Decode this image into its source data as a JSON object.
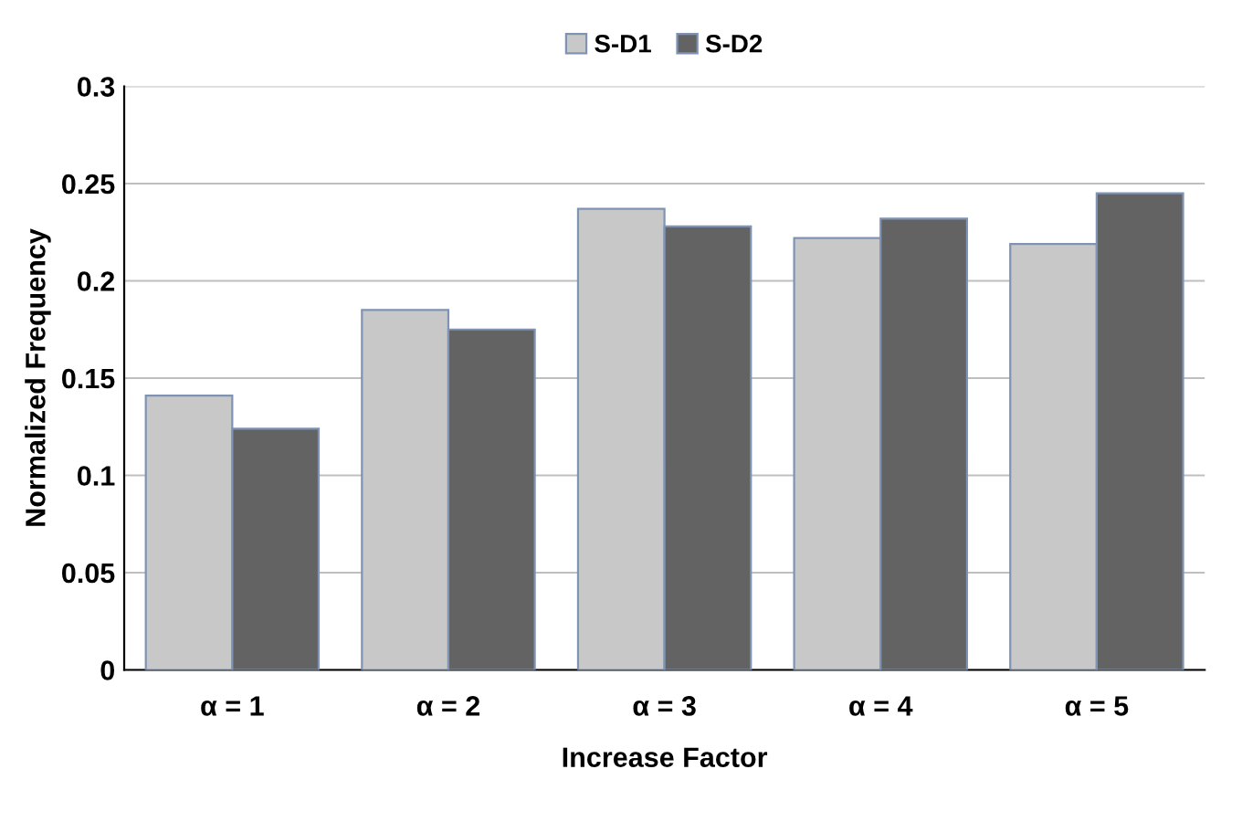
{
  "chart_data": {
    "type": "bar",
    "xlabel": "Increase Factor",
    "ylabel": "Normalized Frequency",
    "categories": [
      "α = 1",
      "α = 2",
      "α = 3",
      "α = 4",
      "α = 5"
    ],
    "series": [
      {
        "name": "S-D1",
        "color": "#c8c8c8",
        "values": [
          0.141,
          0.185,
          0.237,
          0.222,
          0.219
        ]
      },
      {
        "name": "S-D2",
        "color": "#636363",
        "values": [
          0.124,
          0.175,
          0.228,
          0.232,
          0.245
        ]
      }
    ],
    "ylim": [
      0,
      0.3
    ],
    "yticks": [
      0,
      0.05,
      0.1,
      0.15,
      0.2,
      0.25,
      0.3
    ],
    "grid": "y",
    "legend": "top"
  }
}
